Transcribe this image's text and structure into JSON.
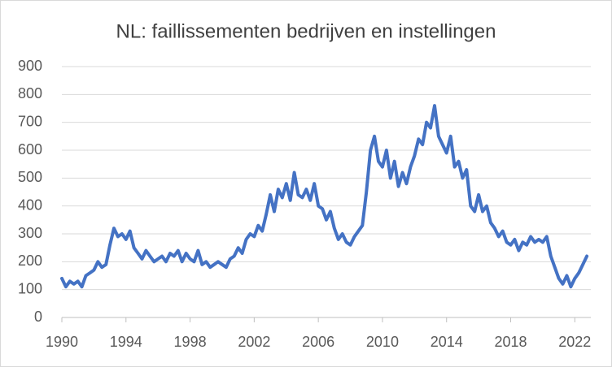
{
  "chart_data": {
    "type": "line",
    "title": "NL: faillissementen bedrijven en instellingen",
    "x": [
      1990,
      1990.25,
      1990.5,
      1990.75,
      1991,
      1991.25,
      1991.5,
      1991.75,
      1992,
      1992.25,
      1992.5,
      1992.75,
      1993,
      1993.25,
      1993.5,
      1993.75,
      1994,
      1994.25,
      1994.5,
      1994.75,
      1995,
      1995.25,
      1995.5,
      1995.75,
      1996,
      1996.25,
      1996.5,
      1996.75,
      1997,
      1997.25,
      1997.5,
      1997.75,
      1998,
      1998.25,
      1998.5,
      1998.75,
      1999,
      1999.25,
      1999.5,
      1999.75,
      2000,
      2000.25,
      2000.5,
      2000.75,
      2001,
      2001.25,
      2001.5,
      2001.75,
      2002,
      2002.25,
      2002.5,
      2002.75,
      2003,
      2003.25,
      2003.5,
      2003.75,
      2004,
      2004.25,
      2004.5,
      2004.75,
      2005,
      2005.25,
      2005.5,
      2005.75,
      2006,
      2006.25,
      2006.5,
      2006.75,
      2007,
      2007.25,
      2007.5,
      2007.75,
      2008,
      2008.25,
      2008.5,
      2008.75,
      2009,
      2009.25,
      2009.5,
      2009.75,
      2010,
      2010.25,
      2010.5,
      2010.75,
      2011,
      2011.25,
      2011.5,
      2011.75,
      2012,
      2012.25,
      2012.5,
      2012.75,
      2013,
      2013.25,
      2013.5,
      2013.75,
      2014,
      2014.25,
      2014.5,
      2014.75,
      2015,
      2015.25,
      2015.5,
      2015.75,
      2016,
      2016.25,
      2016.5,
      2016.75,
      2017,
      2017.25,
      2017.5,
      2017.75,
      2018,
      2018.25,
      2018.5,
      2018.75,
      2019,
      2019.25,
      2019.5,
      2019.75,
      2020,
      2020.25,
      2020.5,
      2020.75,
      2021,
      2021.25,
      2021.5,
      2021.75,
      2022,
      2022.25,
      2022.5,
      2022.75
    ],
    "series": [
      {
        "name": "faillissementen",
        "color": "#4472c4",
        "values": [
          140,
          110,
          130,
          120,
          130,
          110,
          150,
          160,
          170,
          200,
          180,
          190,
          260,
          320,
          290,
          300,
          280,
          310,
          250,
          230,
          210,
          240,
          220,
          200,
          210,
          220,
          200,
          230,
          220,
          240,
          200,
          230,
          210,
          200,
          240,
          190,
          200,
          180,
          190,
          200,
          190,
          180,
          210,
          220,
          250,
          230,
          280,
          300,
          290,
          330,
          310,
          370,
          440,
          380,
          460,
          430,
          480,
          420,
          520,
          440,
          430,
          460,
          420,
          480,
          400,
          390,
          350,
          380,
          320,
          280,
          300,
          270,
          260,
          290,
          310,
          330,
          450,
          600,
          650,
          560,
          540,
          600,
          500,
          560,
          470,
          520,
          480,
          540,
          580,
          640,
          620,
          700,
          680,
          760,
          650,
          620,
          590,
          650,
          540,
          560,
          500,
          530,
          400,
          380,
          440,
          380,
          400,
          340,
          320,
          290,
          310,
          270,
          260,
          280,
          240,
          270,
          260,
          290,
          270,
          280,
          270,
          290,
          220,
          180,
          140,
          120,
          150,
          110,
          140,
          160,
          190,
          220
        ]
      }
    ],
    "xlim": [
      1990,
      2023
    ],
    "xticks": [
      1990,
      1994,
      1998,
      2002,
      2006,
      2010,
      2014,
      2018,
      2022
    ],
    "ylim": [
      0,
      900
    ],
    "yticks": [
      0,
      100,
      200,
      300,
      400,
      500,
      600,
      700,
      800,
      900
    ],
    "grid": true
  }
}
